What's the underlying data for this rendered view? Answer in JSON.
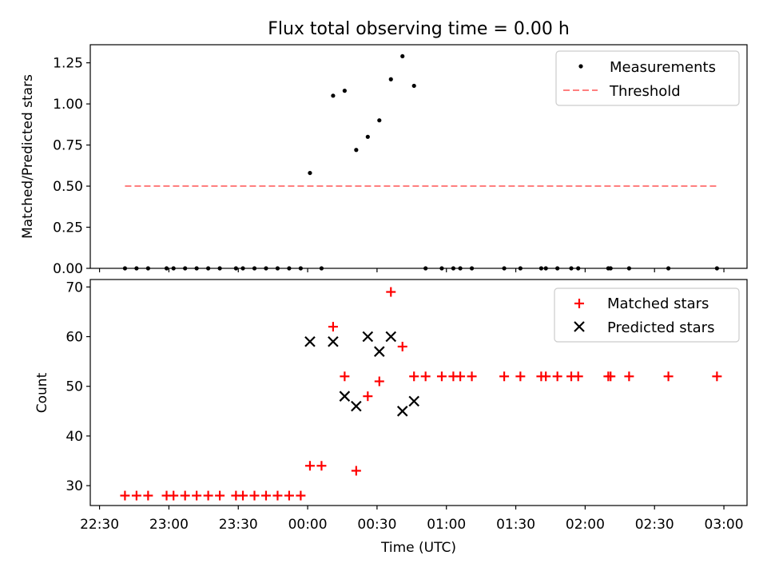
{
  "chart_data": [
    {
      "type": "scatter",
      "title": "Flux total observing time = 0.00 h",
      "xlabel": "",
      "ylabel": "Matched/Predicted stars",
      "ylim": [
        0,
        1.36
      ],
      "yticks": [
        "0.00",
        "0.25",
        "0.50",
        "0.75",
        "1.00",
        "1.25"
      ],
      "ytick_values": [
        0,
        0.25,
        0.5,
        0.75,
        1.0,
        1.25
      ],
      "legend": "top-right",
      "series": [
        {
          "name": "Measurements",
          "kind": "dots",
          "color": "#000000",
          "points": [
            [
              "22:41",
              0
            ],
            [
              "22:46",
              0
            ],
            [
              "22:51",
              0
            ],
            [
              "22:59",
              0
            ],
            [
              "23:02",
              0
            ],
            [
              "23:07",
              0
            ],
            [
              "23:12",
              0
            ],
            [
              "23:17",
              0
            ],
            [
              "23:22",
              0
            ],
            [
              "23:29",
              0
            ],
            [
              "23:32",
              0
            ],
            [
              "23:37",
              0
            ],
            [
              "23:42",
              0
            ],
            [
              "23:47",
              0
            ],
            [
              "23:52",
              0
            ],
            [
              "23:57",
              0
            ],
            [
              "00:01",
              0.58
            ],
            [
              "00:06",
              0
            ],
            [
              "00:11",
              1.05
            ],
            [
              "00:16",
              1.08
            ],
            [
              "00:21",
              0.72
            ],
            [
              "00:26",
              0.8
            ],
            [
              "00:31",
              0.9
            ],
            [
              "00:36",
              1.15
            ],
            [
              "00:41",
              1.29
            ],
            [
              "00:46",
              1.11
            ],
            [
              "00:51",
              0
            ],
            [
              "00:58",
              0
            ],
            [
              "01:03",
              0
            ],
            [
              "01:06",
              0
            ],
            [
              "01:11",
              0
            ],
            [
              "01:25",
              0
            ],
            [
              "01:32",
              0
            ],
            [
              "01:41",
              0
            ],
            [
              "01:43",
              0
            ],
            [
              "01:48",
              0
            ],
            [
              "01:54",
              0
            ],
            [
              "01:57",
              0
            ],
            [
              "02:10",
              0
            ],
            [
              "02:11",
              0
            ],
            [
              "02:19",
              0
            ],
            [
              "02:36",
              0
            ],
            [
              "02:57",
              0
            ]
          ]
        },
        {
          "name": "Threshold",
          "kind": "dashed",
          "color": "#ff7f7f",
          "points": [
            [
              "22:41",
              0.5
            ],
            [
              "02:57",
              0.5
            ]
          ]
        }
      ]
    },
    {
      "type": "scatter",
      "title": "",
      "xlabel": "Time (UTC)",
      "ylabel": "Count",
      "ylim": [
        26,
        71.5
      ],
      "yticks": [
        "30",
        "40",
        "50",
        "60",
        "70"
      ],
      "ytick_values": [
        30,
        40,
        50,
        60,
        70
      ],
      "xlim": [
        "22:26",
        "03:10"
      ],
      "xticks": [
        "22:30",
        "23:00",
        "23:30",
        "00:00",
        "00:30",
        "01:00",
        "01:30",
        "02:00",
        "02:30",
        "03:00"
      ],
      "legend": "top-right",
      "series": [
        {
          "name": "Matched stars",
          "kind": "plus",
          "color": "#ff0000",
          "points": [
            [
              "22:41",
              28
            ],
            [
              "22:46",
              28
            ],
            [
              "22:51",
              28
            ],
            [
              "22:59",
              28
            ],
            [
              "23:02",
              28
            ],
            [
              "23:07",
              28
            ],
            [
              "23:12",
              28
            ],
            [
              "23:17",
              28
            ],
            [
              "23:22",
              28
            ],
            [
              "23:29",
              28
            ],
            [
              "23:32",
              28
            ],
            [
              "23:37",
              28
            ],
            [
              "23:42",
              28
            ],
            [
              "23:47",
              28
            ],
            [
              "23:52",
              28
            ],
            [
              "23:57",
              28
            ],
            [
              "00:01",
              34
            ],
            [
              "00:06",
              34
            ],
            [
              "00:11",
              62
            ],
            [
              "00:16",
              52
            ],
            [
              "00:21",
              33
            ],
            [
              "00:26",
              48
            ],
            [
              "00:31",
              51
            ],
            [
              "00:36",
              69
            ],
            [
              "00:41",
              58
            ],
            [
              "00:46",
              52
            ],
            [
              "00:51",
              52
            ],
            [
              "00:58",
              52
            ],
            [
              "01:03",
              52
            ],
            [
              "01:06",
              52
            ],
            [
              "01:11",
              52
            ],
            [
              "01:25",
              52
            ],
            [
              "01:32",
              52
            ],
            [
              "01:41",
              52
            ],
            [
              "01:43",
              52
            ],
            [
              "01:48",
              52
            ],
            [
              "01:54",
              52
            ],
            [
              "01:57",
              52
            ],
            [
              "02:10",
              52
            ],
            [
              "02:11",
              52
            ],
            [
              "02:19",
              52
            ],
            [
              "02:36",
              52
            ],
            [
              "02:57",
              52
            ]
          ]
        },
        {
          "name": "Predicted stars",
          "kind": "x",
          "color": "#000000",
          "points": [
            [
              "00:01",
              59
            ],
            [
              "00:11",
              59
            ],
            [
              "00:16",
              48
            ],
            [
              "00:21",
              46
            ],
            [
              "00:26",
              60
            ],
            [
              "00:31",
              57
            ],
            [
              "00:36",
              60
            ],
            [
              "00:41",
              45
            ],
            [
              "00:46",
              47
            ]
          ]
        }
      ]
    }
  ]
}
